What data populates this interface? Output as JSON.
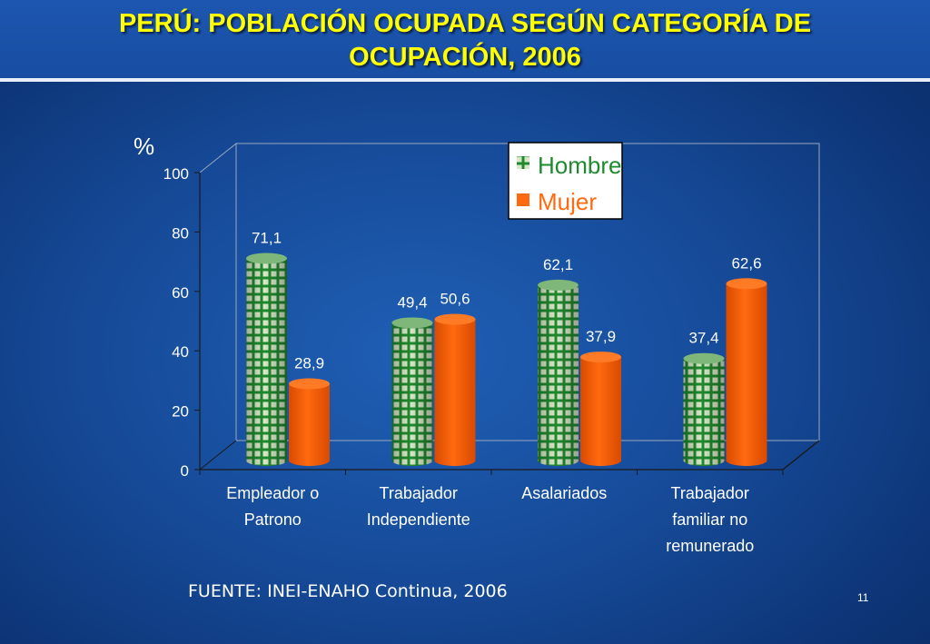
{
  "slide": {
    "title_line1": "PERÚ: POBLACIÓN OCUPADA SEGÚN CATEGORÍA DE",
    "title_line2": "OCUPACIÓN, 2006",
    "source": "FUENTE: INEI-ENAHO Continua, 2006",
    "slide_number": "11"
  },
  "colors": {
    "hombre": "#1f8a2e",
    "hombre_cell": "#d8e8c8",
    "mujer": "#ff6a10",
    "mujer_dark": "#d94a00",
    "label": "#ffffff",
    "axis": "#1a1a1a"
  },
  "chart_data": {
    "type": "bar",
    "title": "",
    "ylabel": "%",
    "ylim": [
      0,
      100
    ],
    "yticks": [
      0,
      20,
      40,
      60,
      80,
      100
    ],
    "categories": [
      [
        "Empleador o",
        "Patrono"
      ],
      [
        "Trabajador",
        "Independiente"
      ],
      [
        "Asalariados"
      ],
      [
        "Trabajador",
        "familiar no",
        "remunerado"
      ]
    ],
    "series": [
      {
        "name": "Hombre",
        "values": [
          71.1,
          49.4,
          62.1,
          37.4
        ],
        "labels": [
          "71,1",
          "49,4",
          "62,1",
          "37,4"
        ]
      },
      {
        "name": "Mujer",
        "values": [
          28.9,
          50.6,
          37.9,
          62.6
        ],
        "labels": [
          "28,9",
          "50,6",
          "37,9",
          "62,6"
        ]
      }
    ],
    "legend_position": "top-right",
    "grid": false
  }
}
